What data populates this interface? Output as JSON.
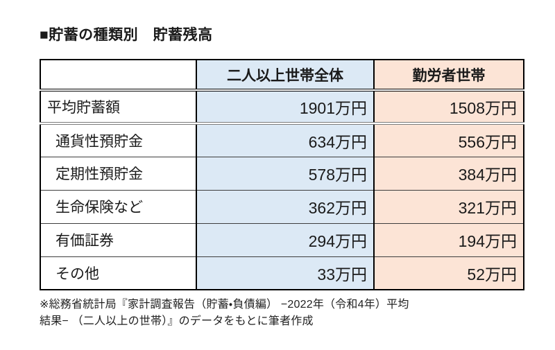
{
  "title": "■貯蓄の種類別　貯蓄残高",
  "colors": {
    "col_all_bg": "#dce9f5",
    "col_worker_bg": "#fce4d6",
    "border": "#000000"
  },
  "table": {
    "columns": [
      "",
      "二人以上世帯全体",
      "勤労者世帯"
    ],
    "unit": "万円",
    "rows": [
      {
        "label": "平均貯蓄額",
        "all": "1901万円",
        "worker": "1508万円"
      },
      {
        "label": "通貨性預貯金",
        "all": "634万円",
        "worker": "556万円"
      },
      {
        "label": "定期性預貯金",
        "all": "578万円",
        "worker": "384万円"
      },
      {
        "label": "生命保険など",
        "all": "362万円",
        "worker": "321万円"
      },
      {
        "label": "有価証券",
        "all": "294万円",
        "worker": "194万円"
      },
      {
        "label": "その他",
        "all": "33万円",
        "worker": "52万円"
      }
    ]
  },
  "footnote": {
    "line1": "※総務省統計局『家計調査報告（貯蓄・負債編） −2022年（令和4年）平均",
    "line2": "結果− （二人以上の世帯）』のデータをもとに筆者作成"
  },
  "chart_data": {
    "type": "table",
    "title": "■貯蓄の種類別　貯蓄残高",
    "categories": [
      "平均貯蓄額",
      "通貨性預貯金",
      "定期性預貯金",
      "生命保険など",
      "有価証券",
      "その他"
    ],
    "series": [
      {
        "name": "二人以上世帯全体",
        "values": [
          1901,
          634,
          578,
          362,
          294,
          33
        ]
      },
      {
        "name": "勤労者世帯",
        "values": [
          1508,
          556,
          384,
          321,
          194,
          52
        ]
      }
    ],
    "unit": "万円",
    "source": "※総務省統計局『家計調査報告（貯蓄・負債編） −2022年（令和4年）平均結果− （二人以上の世帯）』のデータをもとに筆者作成"
  }
}
